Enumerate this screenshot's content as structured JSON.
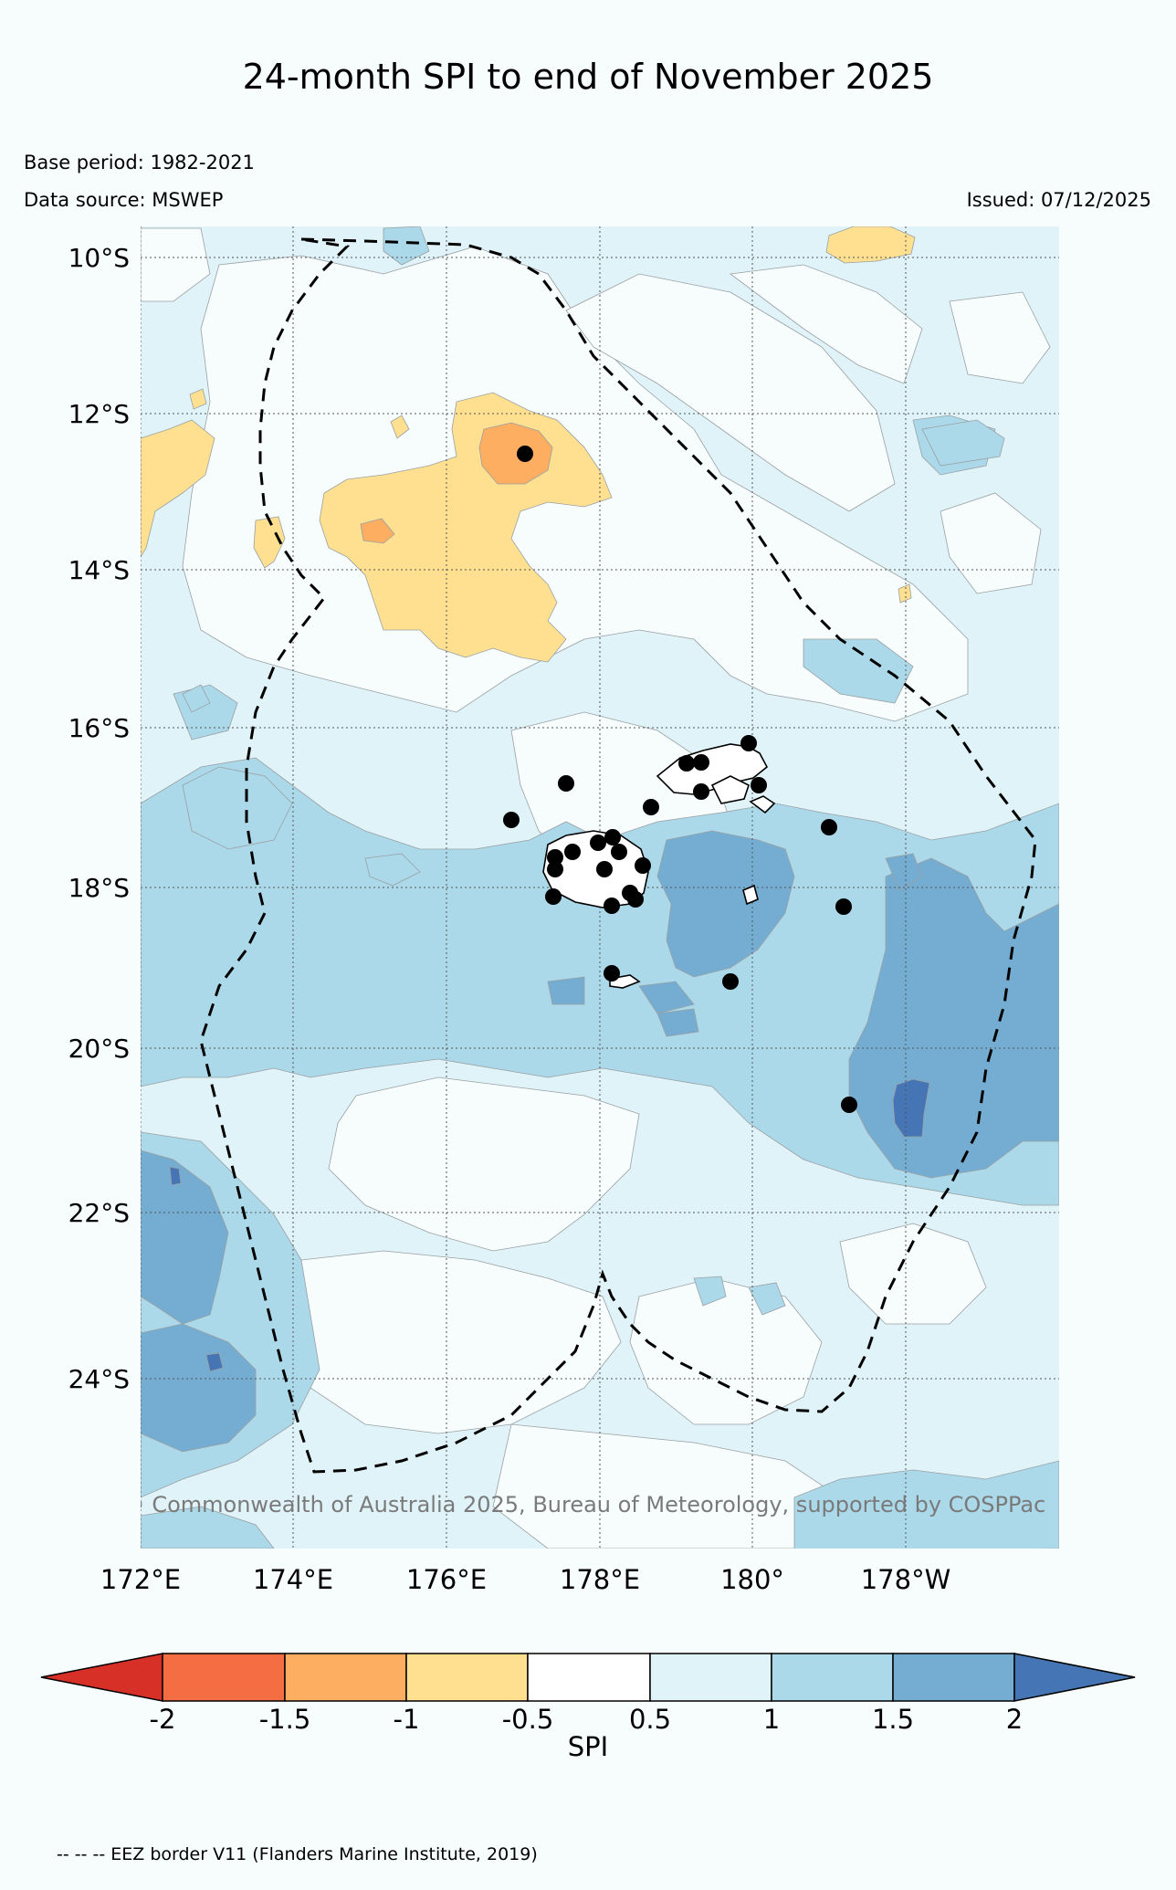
{
  "header": {
    "title": "24-month SPI to end of November 2025",
    "base_period": "Base period: 1982-2021",
    "data_source": "Data source: MSWEP",
    "issued": "Issued: 07/12/2025"
  },
  "map": {
    "lat_labels": [
      "10°S",
      "12°S",
      "14°S",
      "16°S",
      "18°S",
      "20°S",
      "22°S",
      "24°S"
    ],
    "lon_labels": [
      "172°E",
      "174°E",
      "176°E",
      "178°E",
      "180°",
      "178°W"
    ],
    "copyright": "© Commonwealth of Australia 2025, Bureau of Meteorology, supported by COSPPac",
    "eez_border_style": "dashed",
    "station_marker_color": "#000000",
    "land_outline_color": "#000000"
  },
  "colorbar": {
    "label": "SPI",
    "ticks": [
      "-2",
      "-1.5",
      "-1",
      "-0.5",
      "0.5",
      "1",
      "1.5",
      "2"
    ],
    "colors": {
      "below_minus_2": "#d73027",
      "minus_2_to_minus_1_5": "#f46d43",
      "minus_1_5_to_minus_1": "#fdae61",
      "minus_1_to_minus_0_5": "#fee090",
      "minus_0_5_to_0_5": "#ffffff",
      "0_5_to_1": "#e0f3f8",
      "1_to_1_5": "#abd9e9",
      "1_5_to_2": "#74add1",
      "above_2": "#4575b4"
    }
  },
  "footer": {
    "eez_note": "-- -- -- EEZ border V11 (Flanders Marine Institute, 2019)"
  }
}
